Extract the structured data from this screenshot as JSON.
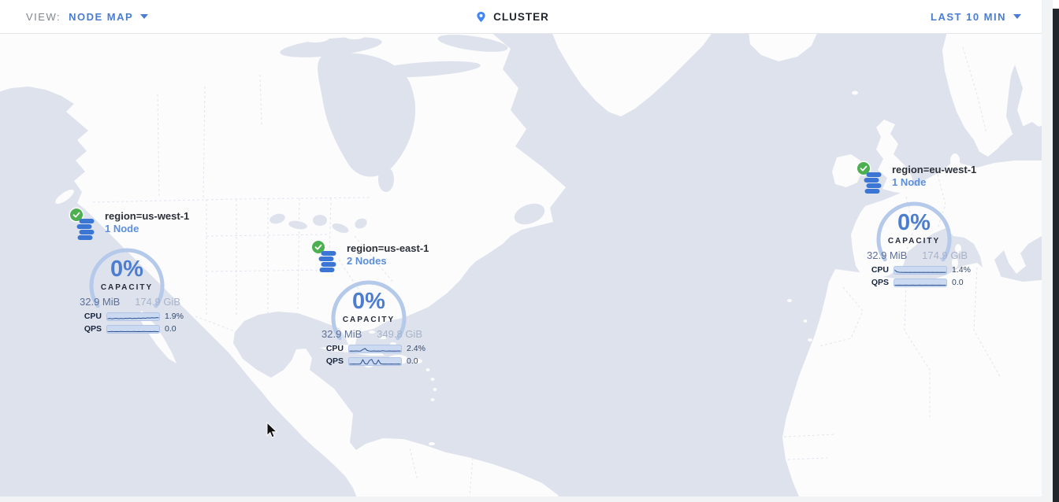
{
  "header": {
    "view_label": "VIEW:",
    "view_value": "NODE MAP",
    "center_label": "CLUSTER",
    "time_range": "LAST 10 MIN"
  },
  "colors": {
    "accent_blue": "#4a7dd2",
    "green_ok": "#4caf50",
    "ocean": "#dee2ec",
    "land": "#fcfcfd",
    "ring": "#b5c9ea",
    "bar_fill": "#cbd9f1",
    "bar_border": "#a6bde4",
    "spark": "#2e5290",
    "pin_blue": "#4285f4",
    "edge_dark": "#22252c"
  },
  "nodes": [
    {
      "region": "region=us-west-1",
      "nodes_label": "1 Node",
      "capacity_pct": "0%",
      "capacity_label": "CAPACITY",
      "used": "32.9 MiB",
      "total": "174.9 GiB",
      "cpu_label": "CPU",
      "cpu_value": "1.9%",
      "qps_label": "QPS",
      "qps_value": "0.0",
      "cpu_spark": [
        0.22,
        0.28,
        0.2,
        0.26,
        0.3,
        0.22,
        0.28,
        0.24,
        0.3,
        0.26,
        0.32,
        0.25,
        0.3,
        0.27,
        0.33,
        0.28,
        0.34,
        0.3,
        0.36,
        0.32,
        0.38,
        0.34,
        0.4,
        0.36
      ],
      "qps_spark": [
        0.18,
        0.18,
        0.2,
        0.18,
        0.19,
        0.18,
        0.2,
        0.19,
        0.18,
        0.2,
        0.18,
        0.19,
        0.2,
        0.18,
        0.19,
        0.18,
        0.2,
        0.19,
        0.18,
        0.19,
        0.18,
        0.2,
        0.18,
        0.18
      ]
    },
    {
      "region": "region=us-east-1",
      "nodes_label": "2 Nodes",
      "capacity_pct": "0%",
      "capacity_label": "CAPACITY",
      "used": "32.9 MiB",
      "total": "349.8 GiB",
      "cpu_label": "CPU",
      "cpu_value": "2.4%",
      "qps_label": "QPS",
      "qps_value": "0.0",
      "cpu_spark": [
        0.2,
        0.22,
        0.2,
        0.24,
        0.2,
        0.22,
        0.45,
        0.6,
        0.3,
        0.22,
        0.2,
        0.24,
        0.2,
        0.22,
        0.2,
        0.26,
        0.22,
        0.2,
        0.24,
        0.2,
        0.22,
        0.2,
        0.24,
        0.2
      ],
      "qps_spark": [
        0.15,
        0.15,
        0.16,
        0.15,
        0.15,
        0.18,
        0.8,
        0.2,
        0.15,
        0.7,
        0.85,
        0.2,
        0.15,
        0.75,
        0.2,
        0.15,
        0.16,
        0.15,
        0.15,
        0.16,
        0.15,
        0.15,
        0.16,
        0.15
      ]
    },
    {
      "region": "region=eu-west-1",
      "nodes_label": "1 Node",
      "capacity_pct": "0%",
      "capacity_label": "CAPACITY",
      "used": "32.9 MiB",
      "total": "174.9 GiB",
      "cpu_label": "CPU",
      "cpu_value": "1.4%",
      "qps_label": "QPS",
      "qps_value": "0.0",
      "cpu_spark": [
        0.55,
        0.3,
        0.24,
        0.22,
        0.2,
        0.22,
        0.2,
        0.22,
        0.2,
        0.22,
        0.2,
        0.22,
        0.2,
        0.22,
        0.2,
        0.22,
        0.2,
        0.22,
        0.2,
        0.22,
        0.2,
        0.22,
        0.2,
        0.22
      ],
      "qps_spark": [
        0.18,
        0.18,
        0.19,
        0.18,
        0.18,
        0.19,
        0.18,
        0.18,
        0.19,
        0.18,
        0.18,
        0.19,
        0.18,
        0.18,
        0.19,
        0.18,
        0.18,
        0.19,
        0.18,
        0.18,
        0.19,
        0.18,
        0.18,
        0.18
      ]
    }
  ]
}
